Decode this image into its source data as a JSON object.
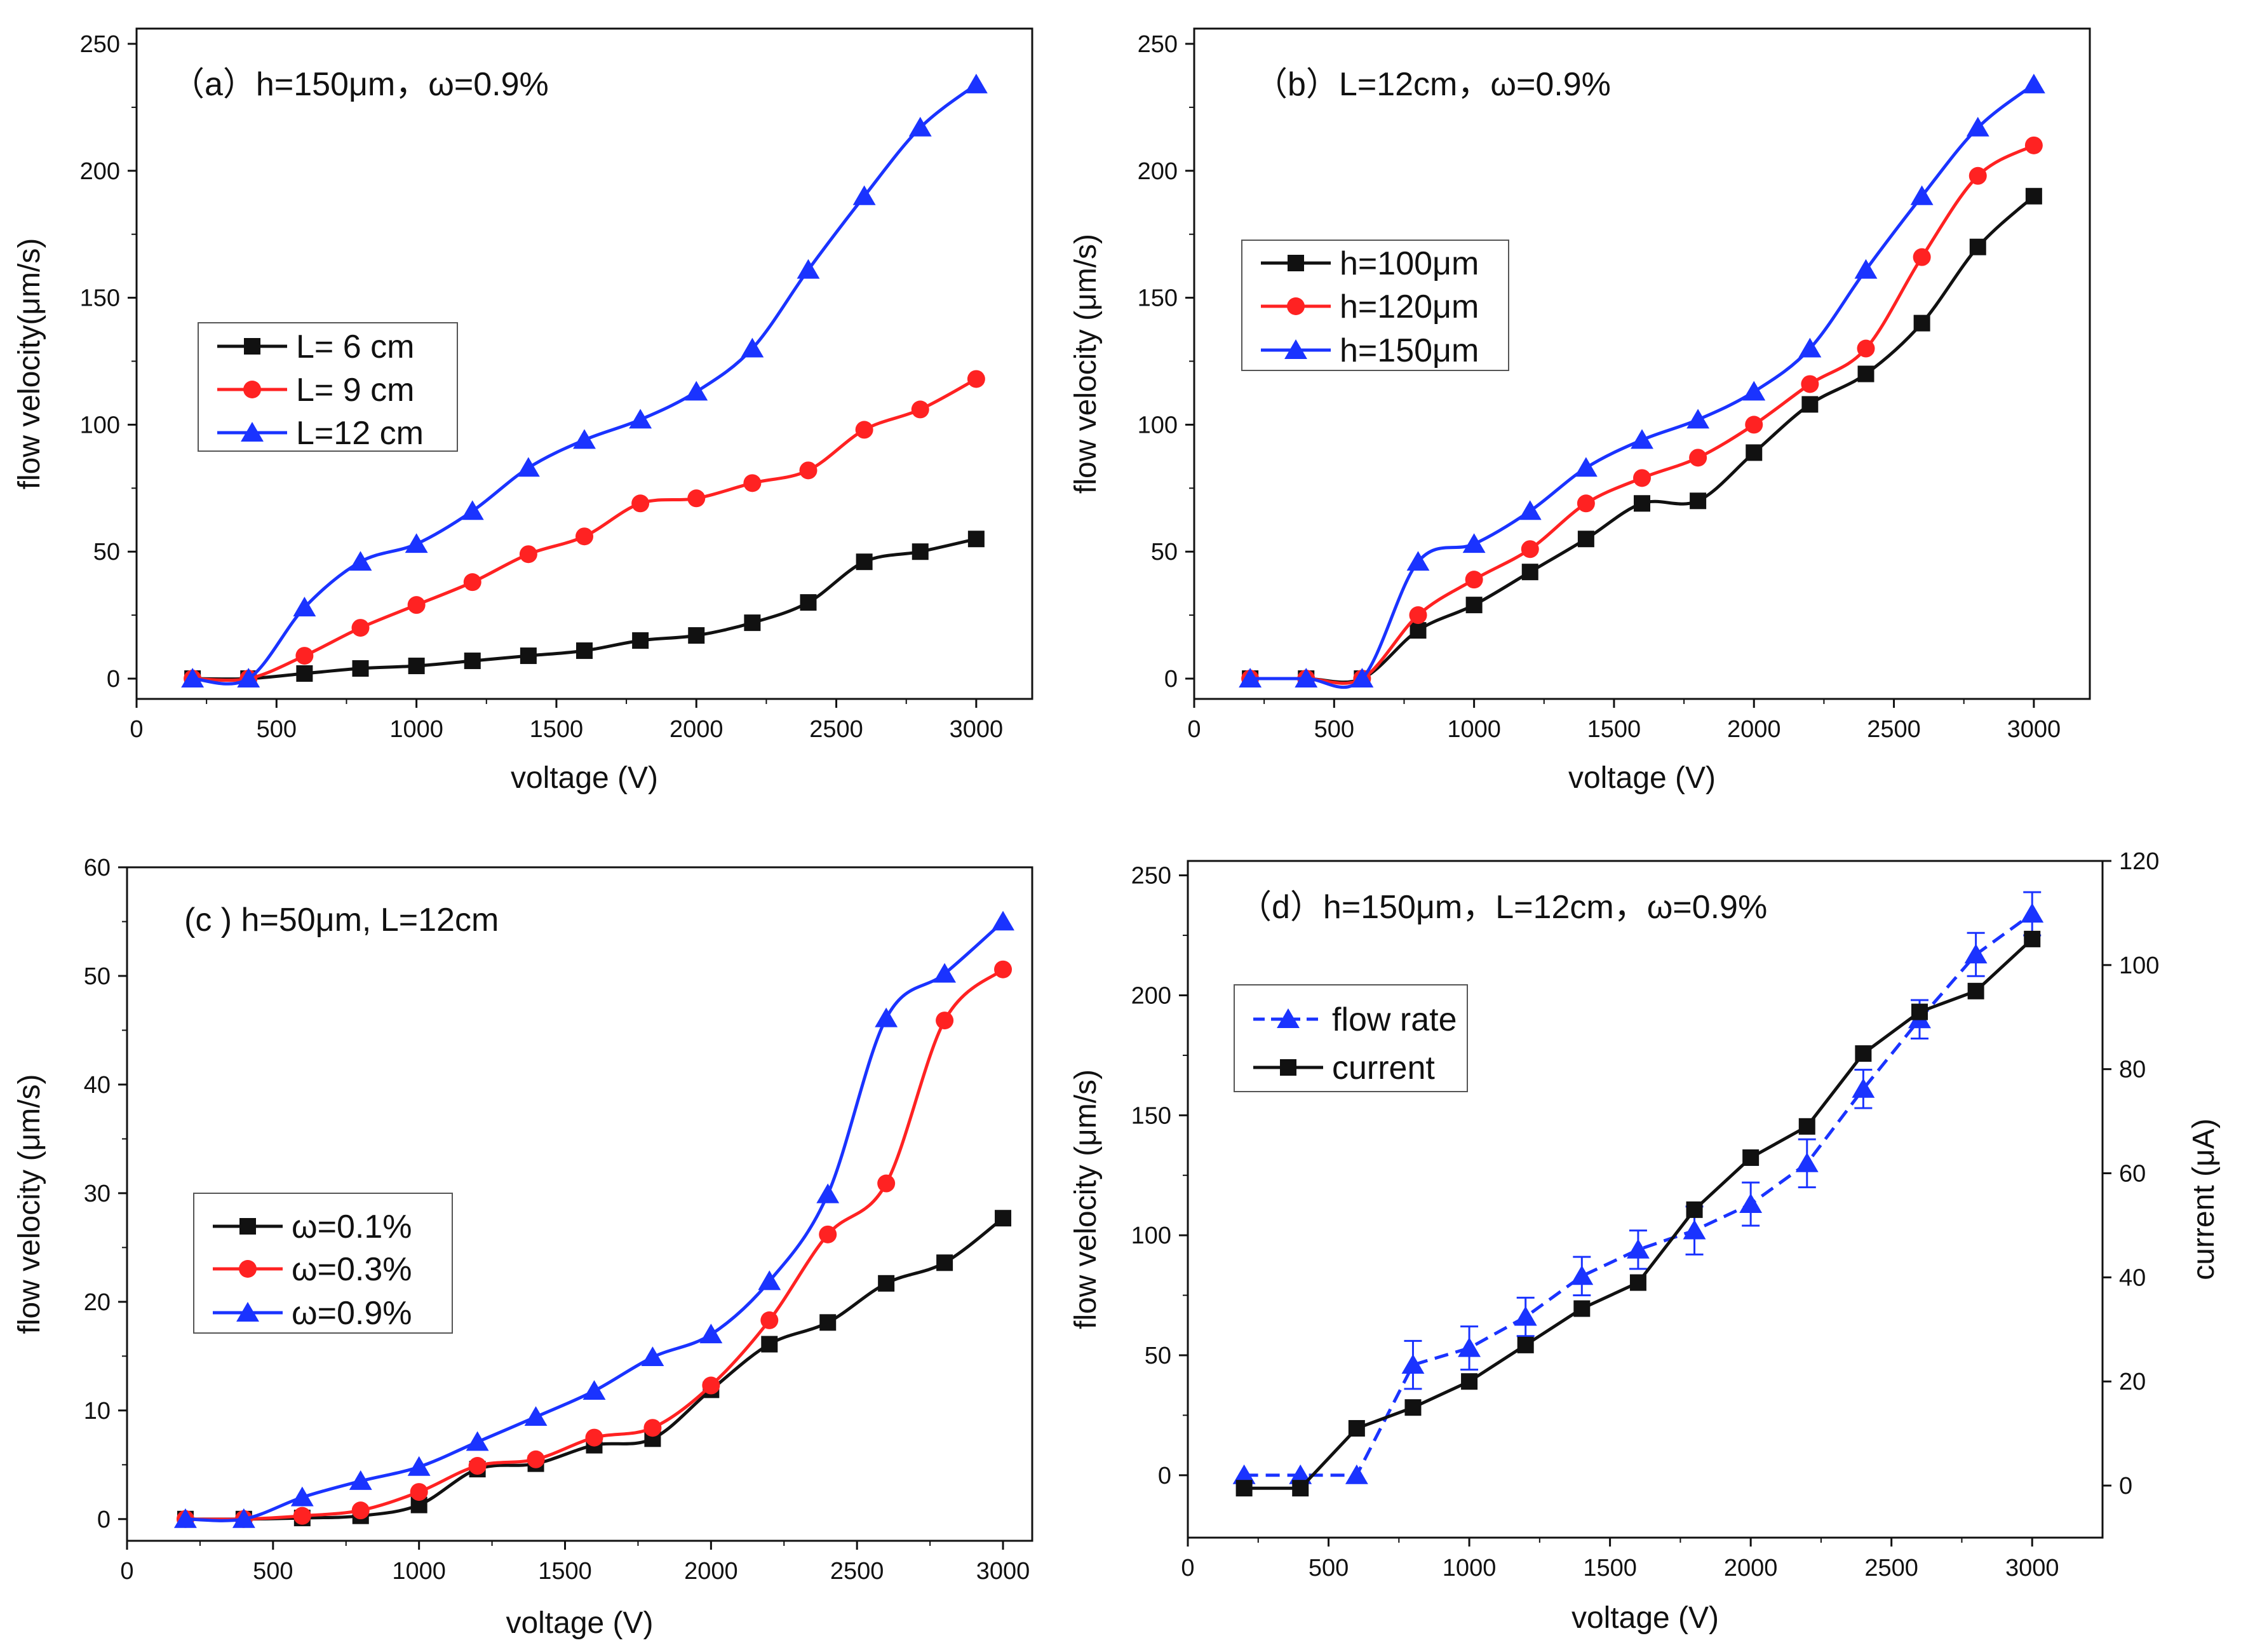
{
  "colors": {
    "black": "#111111",
    "red": "#ff2222",
    "blue": "#1a33ff",
    "axis": "#111111"
  },
  "chart_data": [
    {
      "id": "a",
      "type": "line",
      "title": "（a）h=150μm，ω=0.9%",
      "xlabel": "voltage (V)",
      "ylabel": "flow velocity(μm/s)",
      "xlim": [
        0,
        3200
      ],
      "ylim": [
        -8,
        256
      ],
      "xticks": [
        0,
        500,
        1000,
        1500,
        2000,
        2500,
        3000
      ],
      "yticks": [
        0,
        50,
        100,
        150,
        200,
        250
      ],
      "x": [
        200,
        400,
        600,
        800,
        1000,
        1200,
        1400,
        1600,
        1800,
        2000,
        2200,
        2400,
        2600,
        2800,
        3000
      ],
      "legend": "middle-left",
      "series": [
        {
          "name": "L=  6 cm",
          "color": "black",
          "marker": "square",
          "values": [
            0,
            0,
            2,
            4,
            5,
            7,
            9,
            11,
            15,
            17,
            22,
            30,
            46,
            50,
            55
          ]
        },
        {
          "name": "L=  9 cm",
          "color": "red",
          "marker": "circle",
          "values": [
            0,
            0,
            9,
            20,
            29,
            38,
            49,
            56,
            69,
            71,
            77,
            82,
            98,
            106,
            118
          ]
        },
        {
          "name": "L=12 cm",
          "color": "blue",
          "marker": "triangle",
          "values": [
            0,
            0,
            28,
            46,
            53,
            66,
            83,
            94,
            102,
            113,
            130,
            161,
            190,
            217,
            234
          ]
        }
      ]
    },
    {
      "id": "b",
      "type": "line",
      "title": "（b）L=12cm，ω=0.9%",
      "xlabel": "voltage (V)",
      "ylabel": "flow velocity (μm/s)",
      "xlim": [
        0,
        3200
      ],
      "ylim": [
        -8,
        256
      ],
      "xticks": [
        0,
        500,
        1000,
        1500,
        2000,
        2500,
        3000
      ],
      "yticks": [
        0,
        50,
        100,
        150,
        200,
        250
      ],
      "x": [
        200,
        400,
        600,
        800,
        1000,
        1200,
        1400,
        1600,
        1800,
        2000,
        2200,
        2400,
        2600,
        2800,
        3000
      ],
      "legend": "middle-left",
      "series": [
        {
          "name": "h=100μm",
          "color": "black",
          "marker": "square",
          "values": [
            0,
            0,
            0,
            19,
            29,
            42,
            55,
            69,
            70,
            89,
            108,
            120,
            140,
            170,
            190
          ]
        },
        {
          "name": "h=120μm",
          "color": "red",
          "marker": "circle",
          "values": [
            0,
            0,
            0,
            25,
            39,
            51,
            69,
            79,
            87,
            100,
            116,
            130,
            166,
            198,
            210
          ]
        },
        {
          "name": "h=150μm",
          "color": "blue",
          "marker": "triangle",
          "values": [
            0,
            0,
            0,
            46,
            53,
            66,
            83,
            94,
            102,
            113,
            130,
            161,
            190,
            217,
            234
          ]
        }
      ]
    },
    {
      "id": "c",
      "type": "line",
      "title": "(c ) h=50μm,  L=12cm",
      "xlabel": "voltage (V)",
      "ylabel": "flow velocity (μm/s)",
      "xlim": [
        0,
        3100
      ],
      "ylim": [
        -2,
        60
      ],
      "xticks": [
        0,
        500,
        1000,
        1500,
        2000,
        2500,
        3000
      ],
      "yticks": [
        0,
        10,
        20,
        30,
        40,
        50,
        60
      ],
      "x": [
        200,
        400,
        600,
        800,
        1000,
        1200,
        1400,
        1600,
        1800,
        2000,
        2200,
        2400,
        2600,
        2800,
        3000
      ],
      "legend": "lower-left",
      "series": [
        {
          "name": "ω=0.1%",
          "color": "black",
          "marker": "square",
          "values": [
            0,
            0,
            0.1,
            0.3,
            1.3,
            4.6,
            5.1,
            6.8,
            7.4,
            11.9,
            16.1,
            18.1,
            21.7,
            23.6,
            27.7
          ]
        },
        {
          "name": "ω=0.3%",
          "color": "red",
          "marker": "circle",
          "values": [
            0,
            0,
            0.3,
            0.8,
            2.5,
            4.9,
            5.5,
            7.5,
            8.4,
            12.3,
            18.3,
            26.2,
            30.9,
            45.9,
            50.6
          ]
        },
        {
          "name": "ω=0.9%",
          "color": "blue",
          "marker": "triangle",
          "values": [
            0,
            0,
            2.0,
            3.5,
            4.8,
            7.1,
            9.4,
            11.8,
            14.9,
            17.0,
            21.9,
            29.9,
            46.1,
            50.2,
            55.0
          ]
        }
      ]
    },
    {
      "id": "d",
      "type": "line",
      "title": "（d）h=150μm，L=12cm，ω=0.9%",
      "xlabel": "voltage (V)",
      "ylabel": "flow velocity (μm/s)",
      "y2label": "current (μA)",
      "xlim": [
        0,
        3250
      ],
      "ylim": [
        -26,
        256
      ],
      "y2lim": [
        -10,
        120
      ],
      "xticks": [
        0,
        500,
        1000,
        1500,
        2000,
        2500,
        3000
      ],
      "yticks": [
        0,
        50,
        100,
        150,
        200,
        250
      ],
      "y2ticks": [
        0,
        20,
        40,
        60,
        80,
        100,
        120
      ],
      "x": [
        200,
        400,
        600,
        800,
        1000,
        1200,
        1400,
        1600,
        1800,
        2000,
        2200,
        2400,
        2600,
        2800,
        3000
      ],
      "legend": "upper-left",
      "series": [
        {
          "name": "flow rate",
          "color": "blue",
          "marker": "triangle",
          "dashed": true,
          "axis": "left",
          "values": [
            0,
            0,
            0,
            46,
            53,
            66,
            83,
            94,
            102,
            113,
            130,
            161,
            190,
            217,
            234
          ],
          "errors": [
            0,
            0,
            0,
            10,
            9,
            8,
            8,
            8,
            10,
            9,
            10,
            8,
            8,
            9,
            9
          ]
        },
        {
          "name": "current",
          "color": "black",
          "marker": "square",
          "dashed": false,
          "axis": "right",
          "values": [
            -0.5,
            -0.5,
            11,
            15,
            20,
            27,
            34,
            39,
            53,
            63,
            69,
            83,
            91,
            95,
            105
          ]
        }
      ]
    }
  ]
}
